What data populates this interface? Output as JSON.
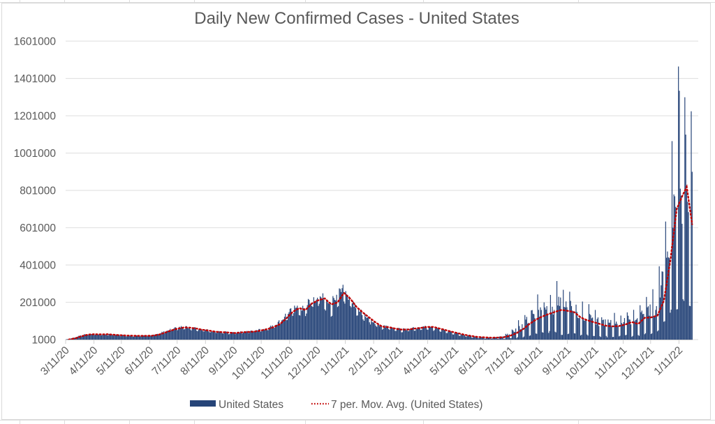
{
  "chart_data": {
    "type": "bar",
    "title": "Daily New Confirmed Cases - United States",
    "xlabel": "",
    "ylabel": "",
    "ylim": [
      1000,
      1601000
    ],
    "y_ticks": [
      1000,
      201000,
      401000,
      601000,
      801000,
      1001000,
      1201000,
      1401000,
      1601000
    ],
    "x_tick_labels": [
      "3/11/20",
      "4/11/20",
      "5/11/20",
      "6/11/20",
      "7/11/20",
      "8/11/20",
      "9/11/20",
      "10/11/20",
      "11/11/20",
      "12/11/20",
      "1/11/21",
      "2/11/21",
      "3/11/21",
      "4/11/21",
      "5/11/21",
      "6/11/21",
      "7/11/21",
      "8/11/21",
      "9/11/21",
      "10/11/21",
      "11/11/21",
      "12/11/21",
      "1/11/22"
    ],
    "x_start": "3/11/20",
    "x_end": "1/25/22",
    "grid": true,
    "legend_position": "bottom",
    "colors": {
      "bars": "#264478",
      "moving_average": "#c00000",
      "grid": "#e3e3e3",
      "text": "#595959"
    },
    "series": [
      {
        "name": "United States",
        "type": "bar",
        "unit_note": "weekly anchor points of daily new cases (start date of each week, typical weekday value, weekend dip value)",
        "weekly": [
          [
            "3/11/20",
            2000,
            1500
          ],
          [
            "3/18/20",
            9000,
            7000
          ],
          [
            "3/25/20",
            20000,
            17000
          ],
          [
            "4/1/20",
            29000,
            26000
          ],
          [
            "4/8/20",
            31000,
            27000
          ],
          [
            "4/15/20",
            30000,
            26000
          ],
          [
            "4/22/20",
            31000,
            26000
          ],
          [
            "4/29/20",
            29000,
            25000
          ],
          [
            "5/6/20",
            26000,
            22000
          ],
          [
            "5/13/20",
            24000,
            20000
          ],
          [
            "5/20/20",
            23000,
            19000
          ],
          [
            "5/27/20",
            22000,
            19000
          ],
          [
            "6/3/20",
            22000,
            18000
          ],
          [
            "6/10/20",
            23000,
            19000
          ],
          [
            "6/17/20",
            28000,
            24000
          ],
          [
            "6/24/20",
            40000,
            35000
          ],
          [
            "7/1/20",
            52000,
            44000
          ],
          [
            "7/8/20",
            62000,
            54000
          ],
          [
            "7/15/20",
            68000,
            58000
          ],
          [
            "7/22/20",
            67000,
            57000
          ],
          [
            "7/29/20",
            64000,
            50000
          ],
          [
            "8/5/20",
            56000,
            46000
          ],
          [
            "8/12/20",
            52000,
            42000
          ],
          [
            "8/19/20",
            45000,
            38000
          ],
          [
            "8/26/20",
            43000,
            36000
          ],
          [
            "9/2/20",
            42000,
            33000
          ],
          [
            "9/9/20",
            38000,
            31000
          ],
          [
            "9/16/20",
            42000,
            36000
          ],
          [
            "9/23/20",
            44000,
            37000
          ],
          [
            "9/30/20",
            46000,
            40000
          ],
          [
            "10/7/20",
            52000,
            45000
          ],
          [
            "10/14/20",
            60000,
            50000
          ],
          [
            "10/21/20",
            72000,
            60000
          ],
          [
            "10/28/20",
            88000,
            75000
          ],
          [
            "11/4/20",
            120000,
            100000
          ],
          [
            "11/11/20",
            155000,
            130000
          ],
          [
            "11/18/20",
            175000,
            150000
          ],
          [
            "11/25/20",
            170000,
            110000
          ],
          [
            "12/2/20",
            205000,
            180000
          ],
          [
            "12/9/20",
            220000,
            190000
          ],
          [
            "12/16/20",
            235000,
            195000
          ],
          [
            "12/23/20",
            210000,
            120000
          ],
          [
            "12/30/20",
            215000,
            150000
          ],
          [
            "1/6/21",
            265000,
            210000
          ],
          [
            "1/13/21",
            230000,
            190000
          ],
          [
            "1/20/21",
            185000,
            150000
          ],
          [
            "1/27/21",
            155000,
            125000
          ],
          [
            "2/3/21",
            125000,
            100000
          ],
          [
            "2/10/21",
            100000,
            80000
          ],
          [
            "2/17/21",
            72000,
            60000
          ],
          [
            "2/24/21",
            72000,
            60000
          ],
          [
            "3/3/21",
            62000,
            50000
          ],
          [
            "3/10/21",
            58000,
            45000
          ],
          [
            "3/17/21",
            57000,
            44000
          ],
          [
            "3/24/21",
            62000,
            48000
          ],
          [
            "3/31/21",
            66000,
            50000
          ],
          [
            "4/7/21",
            72000,
            56000
          ],
          [
            "4/14/21",
            71000,
            55000
          ],
          [
            "4/21/21",
            62000,
            48000
          ],
          [
            "4/28/21",
            54000,
            40000
          ],
          [
            "5/5/21",
            44000,
            33000
          ],
          [
            "5/12/21",
            36000,
            26000
          ],
          [
            "5/19/21",
            28000,
            20000
          ],
          [
            "5/26/21",
            22000,
            14000
          ],
          [
            "6/2/21",
            16000,
            10000
          ],
          [
            "6/9/21",
            14000,
            8000
          ],
          [
            "6/16/21",
            12000,
            6000
          ],
          [
            "6/23/21",
            13000,
            6000
          ],
          [
            "6/30/21",
            18000,
            5000
          ],
          [
            "7/7/21",
            28000,
            8000
          ],
          [
            "7/14/21",
            45000,
            12000
          ],
          [
            "7/21/21",
            70000,
            18000
          ],
          [
            "7/28/21",
            105000,
            25000
          ],
          [
            "8/4/21",
            135000,
            35000
          ],
          [
            "8/11/21",
            155000,
            40000
          ],
          [
            "8/18/21",
            165000,
            45000
          ],
          [
            "8/25/21",
            175000,
            50000
          ],
          [
            "9/1/21",
            185000,
            40000
          ],
          [
            "9/8/21",
            190000,
            45000
          ],
          [
            "9/15/21",
            170000,
            40000
          ],
          [
            "9/22/21",
            145000,
            35000
          ],
          [
            "9/29/21",
            125000,
            30000
          ],
          [
            "10/6/21",
            115000,
            28000
          ],
          [
            "10/13/21",
            100000,
            25000
          ],
          [
            "10/20/21",
            90000,
            22000
          ],
          [
            "10/27/21",
            85000,
            22000
          ],
          [
            "11/3/21",
            90000,
            22000
          ],
          [
            "11/10/21",
            100000,
            25000
          ],
          [
            "11/17/21",
            115000,
            28000
          ],
          [
            "11/24/21",
            95000,
            20000
          ],
          [
            "12/1/21",
            140000,
            35000
          ],
          [
            "12/8/21",
            145000,
            38000
          ],
          [
            "12/15/21",
            170000,
            45000
          ],
          [
            "12/22/21",
            260000,
            60000
          ],
          [
            "12/29/21",
            520000,
            150000
          ],
          [
            "1/5/22",
            720000,
            250000
          ],
          [
            "1/12/22",
            820000,
            280000
          ],
          [
            "1/19/22",
            760000,
            250000
          ]
        ],
        "notable_peaks": [
          {
            "date": "1/3/22",
            "value": 1065000
          },
          {
            "date": "1/10/22",
            "value": 1465000
          },
          {
            "date": "1/11/22",
            "value": 1335000
          },
          {
            "date": "1/18/22",
            "value": 1100000
          },
          {
            "date": "1/24/22",
            "value": 1225000
          },
          {
            "date": "1/8/21",
            "value": 295000
          },
          {
            "date": "8/30/21",
            "value": 315000
          }
        ]
      },
      {
        "name": "7 per. Mov. Avg. (United States)",
        "type": "line",
        "style": "dotted",
        "weekly": [
          [
            "3/14/20",
            1500
          ],
          [
            "3/21/20",
            8000
          ],
          [
            "3/28/20",
            19000
          ],
          [
            "4/4/20",
            28000
          ],
          [
            "4/11/20",
            30000
          ],
          [
            "4/18/20",
            29000
          ],
          [
            "4/25/20",
            30000
          ],
          [
            "5/2/20",
            27000
          ],
          [
            "5/9/20",
            25000
          ],
          [
            "5/16/20",
            23000
          ],
          [
            "5/23/20",
            22000
          ],
          [
            "5/30/20",
            21000
          ],
          [
            "6/6/20",
            21000
          ],
          [
            "6/13/20",
            22000
          ],
          [
            "6/20/20",
            27000
          ],
          [
            "6/27/20",
            38000
          ],
          [
            "7/4/20",
            50000
          ],
          [
            "7/11/20",
            60000
          ],
          [
            "7/18/20",
            66000
          ],
          [
            "7/25/20",
            65000
          ],
          [
            "8/1/20",
            60000
          ],
          [
            "8/8/20",
            53000
          ],
          [
            "8/15/20",
            49000
          ],
          [
            "8/22/20",
            43000
          ],
          [
            "8/29/20",
            41000
          ],
          [
            "9/5/20",
            39000
          ],
          [
            "9/12/20",
            36000
          ],
          [
            "9/19/20",
            40000
          ],
          [
            "9/26/20",
            42000
          ],
          [
            "10/3/20",
            44000
          ],
          [
            "10/10/20",
            50000
          ],
          [
            "10/17/20",
            57000
          ],
          [
            "10/24/20",
            68000
          ],
          [
            "10/31/20",
            84000
          ],
          [
            "11/7/20",
            115000
          ],
          [
            "11/14/20",
            150000
          ],
          [
            "11/21/20",
            170000
          ],
          [
            "11/28/20",
            160000
          ],
          [
            "12/5/20",
            195000
          ],
          [
            "12/12/20",
            212000
          ],
          [
            "12/19/20",
            222000
          ],
          [
            "12/26/20",
            190000
          ],
          [
            "1/2/21",
            200000
          ],
          [
            "1/9/21",
            252000
          ],
          [
            "1/16/21",
            220000
          ],
          [
            "1/23/21",
            175000
          ],
          [
            "1/30/21",
            145000
          ],
          [
            "2/6/21",
            118000
          ],
          [
            "2/13/21",
            92000
          ],
          [
            "2/20/21",
            70000
          ],
          [
            "2/27/21",
            68000
          ],
          [
            "3/6/21",
            60000
          ],
          [
            "3/13/21",
            55000
          ],
          [
            "3/20/21",
            55000
          ],
          [
            "3/27/21",
            60000
          ],
          [
            "4/3/21",
            64000
          ],
          [
            "4/10/21",
            69000
          ],
          [
            "4/17/21",
            69000
          ],
          [
            "4/24/21",
            60000
          ],
          [
            "5/1/21",
            51000
          ],
          [
            "5/8/21",
            42000
          ],
          [
            "5/15/21",
            34000
          ],
          [
            "5/22/21",
            26000
          ],
          [
            "5/29/21",
            20000
          ],
          [
            "6/5/21",
            15000
          ],
          [
            "6/12/21",
            13000
          ],
          [
            "6/19/21",
            11500
          ],
          [
            "6/26/21",
            12000
          ],
          [
            "7/3/21",
            14000
          ],
          [
            "7/10/21",
            22000
          ],
          [
            "7/17/21",
            36000
          ],
          [
            "7/24/21",
            57000
          ],
          [
            "7/31/21",
            85000
          ],
          [
            "8/7/21",
            108000
          ],
          [
            "8/14/21",
            125000
          ],
          [
            "8/21/21",
            138000
          ],
          [
            "8/28/21",
            150000
          ],
          [
            "9/4/21",
            160000
          ],
          [
            "9/11/21",
            155000
          ],
          [
            "9/18/21",
            148000
          ],
          [
            "9/25/21",
            120000
          ],
          [
            "10/2/21",
            105000
          ],
          [
            "10/9/21",
            95000
          ],
          [
            "10/16/21",
            85000
          ],
          [
            "10/23/21",
            75000
          ],
          [
            "10/30/21",
            72000
          ],
          [
            "11/6/21",
            74000
          ],
          [
            "11/13/21",
            82000
          ],
          [
            "11/20/21",
            95000
          ],
          [
            "11/27/21",
            85000
          ],
          [
            "12/4/21",
            118000
          ],
          [
            "12/11/21",
            120000
          ],
          [
            "12/18/21",
            130000
          ],
          [
            "12/25/21",
            210000
          ],
          [
            "1/1/22",
            420000
          ],
          [
            "1/8/22",
            700000
          ],
          [
            "1/15/22",
            780000
          ],
          [
            "1/19/22",
            820000
          ],
          [
            "1/25/22",
            620000
          ]
        ]
      }
    ]
  }
}
